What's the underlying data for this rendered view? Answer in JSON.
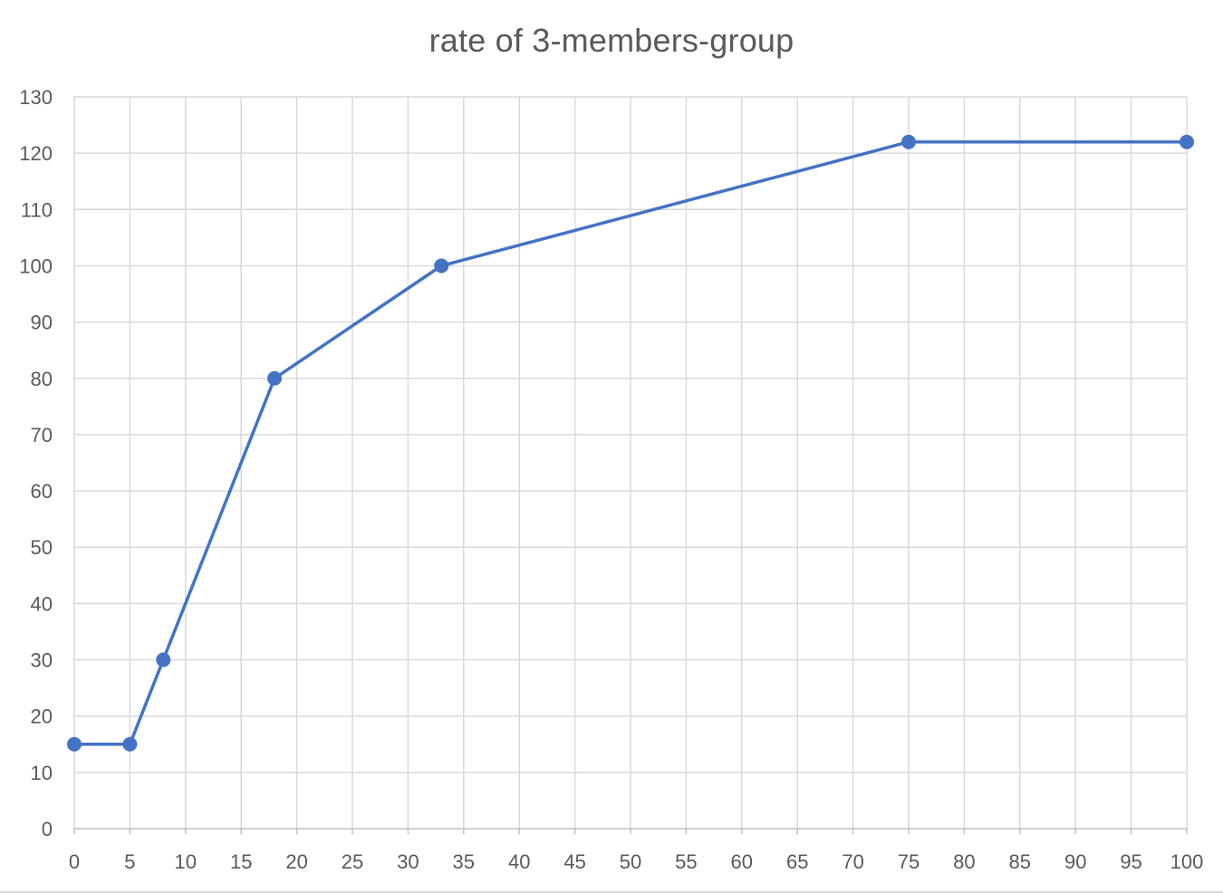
{
  "chart_data": {
    "type": "line",
    "title": "rate of 3-members-group",
    "xlabel": "",
    "ylabel": "",
    "xlim": [
      0,
      100
    ],
    "ylim": [
      0,
      130
    ],
    "x_ticks": [
      0,
      5,
      10,
      15,
      20,
      25,
      30,
      35,
      40,
      45,
      50,
      55,
      60,
      65,
      70,
      75,
      80,
      85,
      90,
      95,
      100
    ],
    "y_ticks": [
      0,
      10,
      20,
      30,
      40,
      50,
      60,
      70,
      80,
      90,
      100,
      110,
      120,
      130
    ],
    "grid": true,
    "legend": "none",
    "series": [
      {
        "color": "#4472c4",
        "marker": "circle",
        "x": [
          0,
          5,
          8,
          18,
          33,
          75,
          100
        ],
        "y": [
          15,
          15,
          30,
          80,
          100,
          122,
          122
        ]
      }
    ]
  }
}
